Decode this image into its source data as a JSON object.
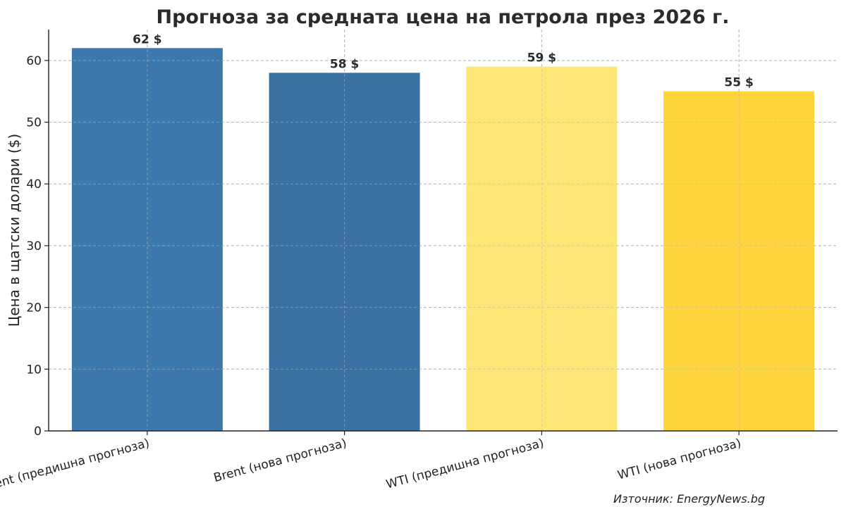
{
  "chart_data": {
    "type": "bar",
    "title": "Прогноза за средната цена на петрола през 2026 г.",
    "xlabel": "",
    "ylabel": "Цена в щатски долари ($)",
    "ylim": [
      0,
      65
    ],
    "yticks": [
      0,
      10,
      20,
      30,
      40,
      50,
      60
    ],
    "categories": [
      "Brent (предишна прогноза)",
      "Brent (нова прогноза)",
      "WTI (предишна прогноза)",
      "WTI (нова прогноза)"
    ],
    "values": [
      62,
      58,
      59,
      55
    ],
    "value_labels": [
      "62 $",
      "58 $",
      "59 $",
      "55 $"
    ],
    "colors": [
      "#3c78ab",
      "#3a70a2",
      "#fde676",
      "#fdd43c"
    ],
    "grid": true,
    "source": "Източник: EnergyNews.bg"
  }
}
